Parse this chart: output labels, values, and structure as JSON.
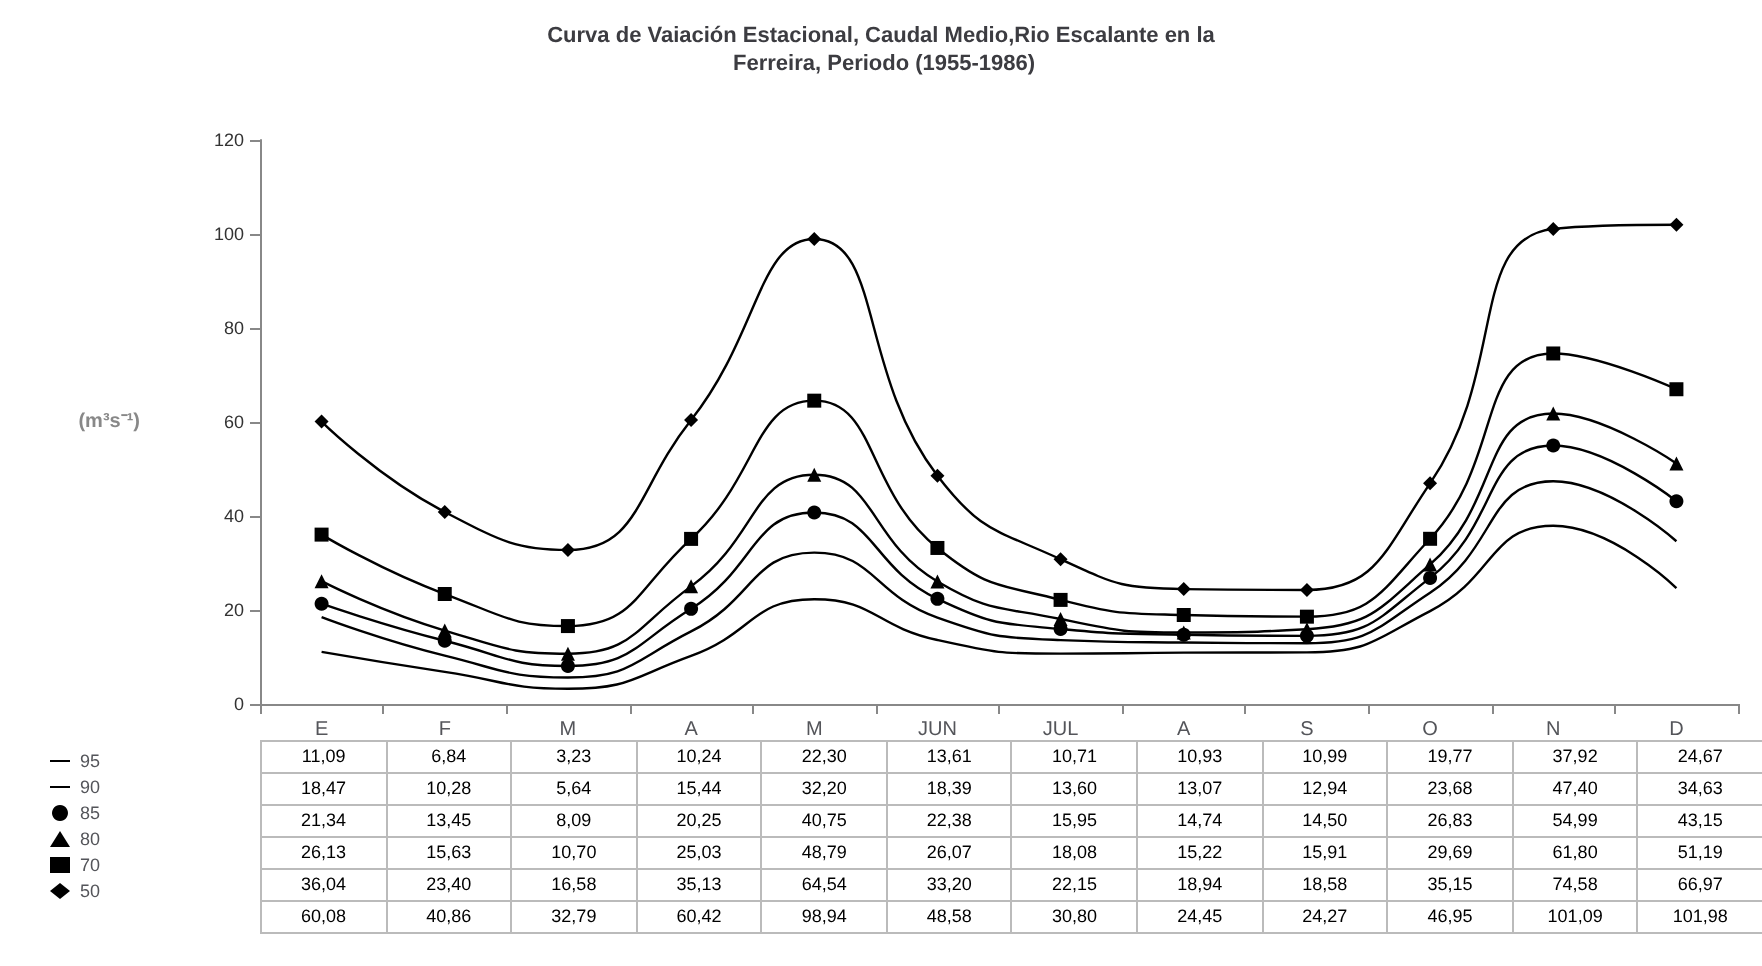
{
  "chart_data": {
    "type": "line",
    "title": "Curva de Vaiación Estacional, Caudal Medio,Rio Escalante en la Ferreira, Periodo (1955-1986)",
    "ylabel": "(m³s⁻¹)",
    "categories": [
      "E",
      "F",
      "M",
      "A",
      "M",
      "JUN",
      "JUL",
      "A",
      "S",
      "O",
      "N",
      "D"
    ],
    "ylim": [
      0,
      120
    ],
    "yticks": [
      0,
      20,
      40,
      60,
      80,
      100,
      120
    ],
    "grid": false,
    "legend": "bottom left",
    "series": [
      {
        "name": "95",
        "color": "#000000",
        "marker": "none",
        "values": [
          11.09,
          6.84,
          3.23,
          10.24,
          22.3,
          13.61,
          10.71,
          10.93,
          10.99,
          19.77,
          37.92,
          24.67
        ],
        "value_labels": [
          "11,09",
          "6,84",
          "3,23",
          "10,24",
          "22,30",
          "13,61",
          "10,71",
          "10,93",
          "10,99",
          "19,77",
          "37,92",
          "24,67"
        ]
      },
      {
        "name": "90",
        "color": "#000000",
        "marker": "none",
        "values": [
          18.47,
          10.28,
          5.64,
          15.44,
          32.2,
          18.39,
          13.6,
          13.07,
          12.94,
          23.68,
          47.4,
          34.63
        ],
        "value_labels": [
          "18,47",
          "10,28",
          "5,64",
          "15,44",
          "32,20",
          "18,39",
          "13,60",
          "13,07",
          "12,94",
          "23,68",
          "47,40",
          "34,63"
        ]
      },
      {
        "name": "85",
        "color": "#000000",
        "marker": "circle",
        "values": [
          21.34,
          13.45,
          8.09,
          20.25,
          40.75,
          22.38,
          15.95,
          14.74,
          14.5,
          26.83,
          54.99,
          43.15
        ],
        "value_labels": [
          "21,34",
          "13,45",
          "8,09",
          "20,25",
          "40,75",
          "22,38",
          "15,95",
          "14,74",
          "14,50",
          "26,83",
          "54,99",
          "43,15"
        ]
      },
      {
        "name": "80",
        "color": "#000000",
        "marker": "triangle",
        "values": [
          26.13,
          15.63,
          10.7,
          25.03,
          48.79,
          26.07,
          18.08,
          15.22,
          15.91,
          29.69,
          61.8,
          51.19
        ],
        "value_labels": [
          "26,13",
          "15,63",
          "10,70",
          "25,03",
          "48,79",
          "26,07",
          "18,08",
          "15,22",
          "15,91",
          "29,69",
          "61,80",
          "51,19"
        ]
      },
      {
        "name": "70",
        "color": "#000000",
        "marker": "square",
        "values": [
          36.04,
          23.4,
          16.58,
          35.13,
          64.54,
          33.2,
          22.15,
          18.94,
          18.58,
          35.15,
          74.58,
          66.97
        ],
        "value_labels": [
          "36,04",
          "23,40",
          "16,58",
          "35,13",
          "64,54",
          "33,20",
          "22,15",
          "18,94",
          "18,58",
          "35,15",
          "74,58",
          "66,97"
        ]
      },
      {
        "name": "50",
        "color": "#000000",
        "marker": "diamond",
        "values": [
          60.08,
          40.86,
          32.79,
          60.42,
          98.94,
          48.58,
          30.8,
          24.45,
          24.27,
          46.95,
          101.09,
          101.98
        ],
        "value_labels": [
          "60,08",
          "40,86",
          "32,79",
          "60,42",
          "98,94",
          "48,58",
          "30,80",
          "24,45",
          "24,27",
          "46,95",
          "101,09",
          "101,98"
        ]
      }
    ]
  }
}
